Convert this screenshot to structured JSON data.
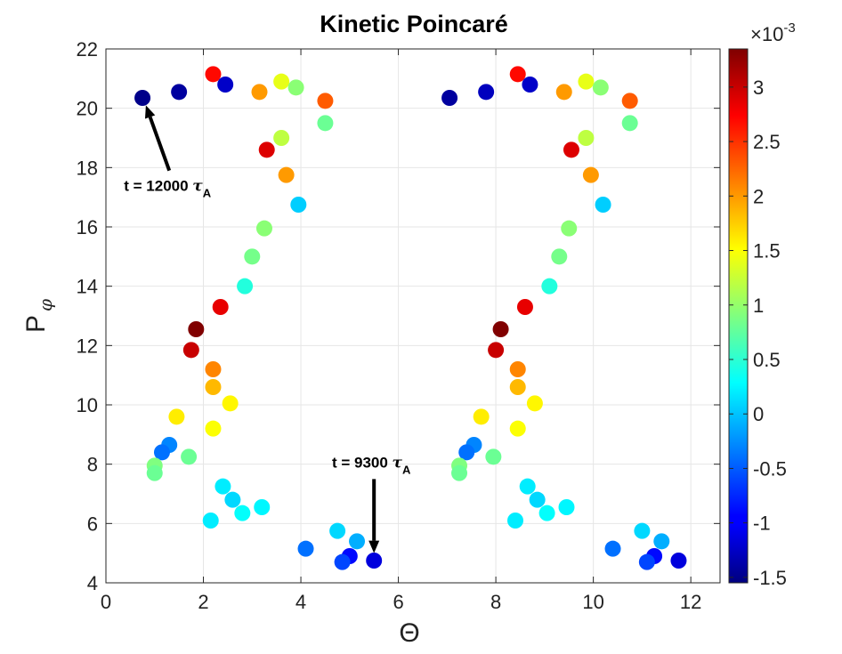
{
  "chart_data": {
    "type": "scatter",
    "title": "Kinetic Poincaré",
    "xlabel": "Θ",
    "ylabel_main": "P",
    "ylabel_sub": "φ",
    "xlim": [
      0,
      12.6
    ],
    "ylim": [
      4,
      22
    ],
    "xticks": [
      0,
      2,
      4,
      6,
      8,
      10,
      12
    ],
    "yticks": [
      4,
      6,
      8,
      10,
      12,
      14,
      16,
      18,
      20,
      22
    ],
    "grid": true,
    "colorbar": {
      "exponent_label": "×10",
      "exponent_power": "-3",
      "range": [
        -1.55,
        3.35
      ],
      "ticks": [
        -1.5,
        -1,
        -0.5,
        0,
        0.5,
        1,
        1.5,
        2,
        2.5,
        3
      ],
      "tick_labels": [
        "-1.5",
        "-1",
        "-0.5",
        "0",
        "0.5",
        "1",
        "1.5",
        "2",
        "2.5",
        "3"
      ],
      "colormap": "jet"
    },
    "points": [
      {
        "x": 0.75,
        "y": 20.35,
        "c": -1.5
      },
      {
        "x": 1.5,
        "y": 20.55,
        "c": -1.4
      },
      {
        "x": 2.2,
        "y": 21.15,
        "c": 2.7
      },
      {
        "x": 2.45,
        "y": 20.8,
        "c": -1.2
      },
      {
        "x": 3.15,
        "y": 20.55,
        "c": 2.0
      },
      {
        "x": 3.6,
        "y": 20.9,
        "c": 1.4
      },
      {
        "x": 3.9,
        "y": 20.7,
        "c": 0.95
      },
      {
        "x": 4.5,
        "y": 20.25,
        "c": 2.3
      },
      {
        "x": 4.5,
        "y": 19.5,
        "c": 0.8
      },
      {
        "x": 3.6,
        "y": 19.0,
        "c": 1.2
      },
      {
        "x": 3.3,
        "y": 18.6,
        "c": 2.9
      },
      {
        "x": 3.7,
        "y": 17.75,
        "c": 2.0
      },
      {
        "x": 3.95,
        "y": 16.75,
        "c": 0.05
      },
      {
        "x": 3.25,
        "y": 15.95,
        "c": 0.95
      },
      {
        "x": 3.0,
        "y": 15.0,
        "c": 0.85
      },
      {
        "x": 2.85,
        "y": 14.0,
        "c": 0.45
      },
      {
        "x": 2.35,
        "y": 13.3,
        "c": 2.85
      },
      {
        "x": 1.85,
        "y": 12.55,
        "c": 3.35
      },
      {
        "x": 1.75,
        "y": 11.85,
        "c": 3.0
      },
      {
        "x": 2.2,
        "y": 11.2,
        "c": 2.1
      },
      {
        "x": 2.2,
        "y": 10.6,
        "c": 1.85
      },
      {
        "x": 2.55,
        "y": 10.05,
        "c": 1.55
      },
      {
        "x": 1.45,
        "y": 9.6,
        "c": 1.6
      },
      {
        "x": 2.2,
        "y": 9.2,
        "c": 1.5
      },
      {
        "x": 1.3,
        "y": 8.65,
        "c": -0.3
      },
      {
        "x": 1.15,
        "y": 8.4,
        "c": -0.4
      },
      {
        "x": 1.7,
        "y": 8.25,
        "c": 0.8
      },
      {
        "x": 1.0,
        "y": 7.95,
        "c": 0.9
      },
      {
        "x": 1.0,
        "y": 7.7,
        "c": 0.8
      },
      {
        "x": 2.4,
        "y": 7.25,
        "c": 0.2
      },
      {
        "x": 2.6,
        "y": 6.8,
        "c": 0.1
      },
      {
        "x": 2.8,
        "y": 6.35,
        "c": 0.3
      },
      {
        "x": 3.2,
        "y": 6.55,
        "c": 0.25
      },
      {
        "x": 2.15,
        "y": 6.1,
        "c": 0.2
      },
      {
        "x": 4.75,
        "y": 5.75,
        "c": 0.1
      },
      {
        "x": 5.15,
        "y": 5.4,
        "c": -0.1
      },
      {
        "x": 4.1,
        "y": 5.15,
        "c": -0.4
      },
      {
        "x": 5.0,
        "y": 4.9,
        "c": -0.9
      },
      {
        "x": 4.85,
        "y": 4.7,
        "c": -0.6
      },
      {
        "x": 5.5,
        "y": 4.75,
        "c": -1.1
      },
      {
        "x": 7.05,
        "y": 20.35,
        "c": -1.4
      },
      {
        "x": 7.8,
        "y": 20.55,
        "c": -1.25
      },
      {
        "x": 8.45,
        "y": 21.15,
        "c": 2.7
      },
      {
        "x": 8.7,
        "y": 20.8,
        "c": -1.2
      },
      {
        "x": 9.4,
        "y": 20.55,
        "c": 2.0
      },
      {
        "x": 9.85,
        "y": 20.9,
        "c": 1.4
      },
      {
        "x": 10.15,
        "y": 20.7,
        "c": 0.95
      },
      {
        "x": 10.75,
        "y": 20.25,
        "c": 2.3
      },
      {
        "x": 10.75,
        "y": 19.5,
        "c": 0.8
      },
      {
        "x": 9.85,
        "y": 19.0,
        "c": 1.2
      },
      {
        "x": 9.55,
        "y": 18.6,
        "c": 2.9
      },
      {
        "x": 9.95,
        "y": 17.75,
        "c": 2.0
      },
      {
        "x": 10.2,
        "y": 16.75,
        "c": 0.05
      },
      {
        "x": 9.5,
        "y": 15.95,
        "c": 0.95
      },
      {
        "x": 9.3,
        "y": 15.0,
        "c": 0.85
      },
      {
        "x": 9.1,
        "y": 14.0,
        "c": 0.45
      },
      {
        "x": 8.6,
        "y": 13.3,
        "c": 2.85
      },
      {
        "x": 8.1,
        "y": 12.55,
        "c": 3.35
      },
      {
        "x": 8.0,
        "y": 11.85,
        "c": 3.0
      },
      {
        "x": 8.45,
        "y": 11.2,
        "c": 2.1
      },
      {
        "x": 8.45,
        "y": 10.6,
        "c": 1.85
      },
      {
        "x": 8.8,
        "y": 10.05,
        "c": 1.55
      },
      {
        "x": 7.7,
        "y": 9.6,
        "c": 1.6
      },
      {
        "x": 8.45,
        "y": 9.2,
        "c": 1.5
      },
      {
        "x": 7.55,
        "y": 8.65,
        "c": -0.3
      },
      {
        "x": 7.4,
        "y": 8.4,
        "c": -0.4
      },
      {
        "x": 7.95,
        "y": 8.25,
        "c": 0.8
      },
      {
        "x": 7.25,
        "y": 7.95,
        "c": 0.9
      },
      {
        "x": 7.25,
        "y": 7.7,
        "c": 0.8
      },
      {
        "x": 8.65,
        "y": 7.25,
        "c": 0.2
      },
      {
        "x": 8.85,
        "y": 6.8,
        "c": 0.1
      },
      {
        "x": 9.05,
        "y": 6.35,
        "c": 0.3
      },
      {
        "x": 9.45,
        "y": 6.55,
        "c": 0.25
      },
      {
        "x": 8.4,
        "y": 6.1,
        "c": 0.2
      },
      {
        "x": 11.0,
        "y": 5.75,
        "c": 0.1
      },
      {
        "x": 11.4,
        "y": 5.4,
        "c": -0.1
      },
      {
        "x": 10.4,
        "y": 5.15,
        "c": -0.4
      },
      {
        "x": 11.25,
        "y": 4.9,
        "c": -0.9
      },
      {
        "x": 11.1,
        "y": 4.7,
        "c": -0.6
      },
      {
        "x": 11.75,
        "y": 4.75,
        "c": -1.1
      }
    ],
    "annotations": [
      {
        "text": "t = 12000 ",
        "symbol": "τ",
        "subscript": "A",
        "arrow_from": [
          1.3,
          17.9
        ],
        "arrow_to": [
          0.82,
          20.1
        ]
      },
      {
        "text": "t = 9300 ",
        "symbol": "τ",
        "subscript": "A",
        "arrow_from": [
          5.5,
          7.5
        ],
        "arrow_to": [
          5.5,
          5.0
        ]
      }
    ]
  }
}
